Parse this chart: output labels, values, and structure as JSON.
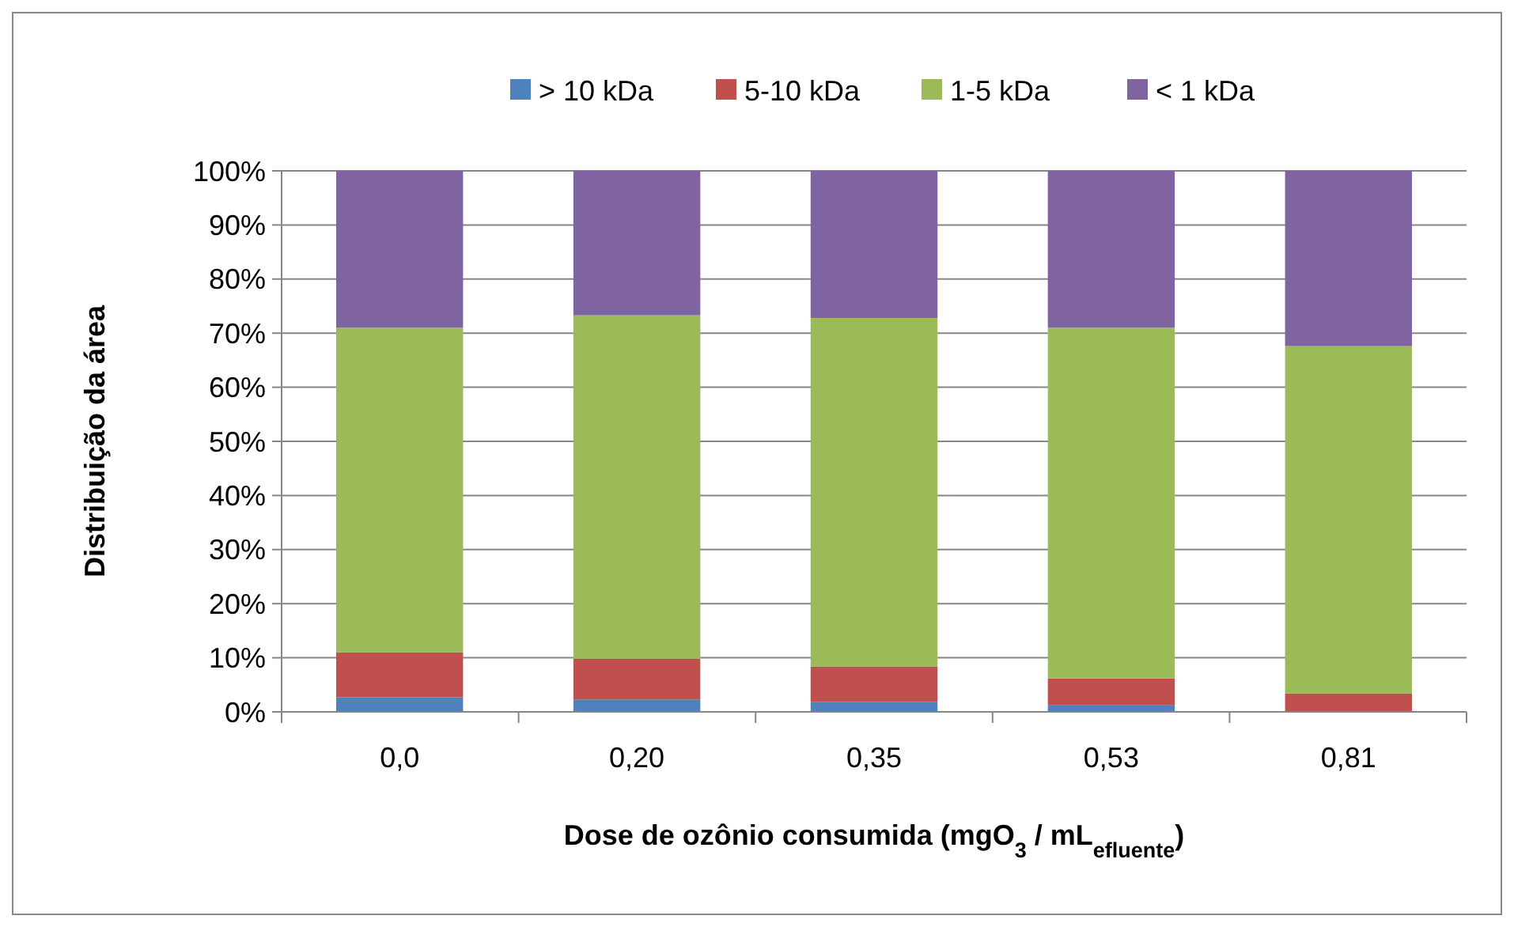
{
  "chart_data": {
    "type": "bar",
    "stacked": true,
    "xlabel": "Dose de ozônio consumida (mgO$_{3}$ / mL$_{efluente}$)",
    "ylabel": "Distribuição da área",
    "categories": [
      "0,0",
      "0,20",
      "0,35",
      "0,53",
      "0,81"
    ],
    "series": [
      {
        "name": "> 10 kDa",
        "color": "#4f81bd",
        "values": [
          2.7,
          2.3,
          1.8,
          1.2,
          null
        ]
      },
      {
        "name": "5-10 kDa",
        "color": "#c0504d",
        "values": [
          8.3,
          7.5,
          6.6,
          5.0,
          3.4
        ]
      },
      {
        "name": "1-5 kDa",
        "color": "#9bbb59",
        "values": [
          60,
          63.5,
          64.4,
          64.8,
          64.2
        ]
      },
      {
        "name": "< 1 kDa",
        "color": "#8064a2",
        "values": [
          29,
          26.7,
          27.2,
          29,
          32.4
        ]
      }
    ],
    "ylim": [
      0,
      100
    ],
    "yticks": [
      {
        "value": 0,
        "label": "0%"
      },
      {
        "value": 10,
        "label": "10%"
      },
      {
        "value": 20,
        "label": "20%"
      },
      {
        "value": 30,
        "label": "30%"
      },
      {
        "value": 40,
        "label": "40%"
      },
      {
        "value": 50,
        "label": "50%"
      },
      {
        "value": 60,
        "label": "60%"
      },
      {
        "value": 70,
        "label": "70%"
      },
      {
        "value": 80,
        "label": "80%"
      },
      {
        "value": 90,
        "label": "90%"
      },
      {
        "value": 100,
        "label": "100%"
      }
    ],
    "grid": "y",
    "legend": "top"
  }
}
